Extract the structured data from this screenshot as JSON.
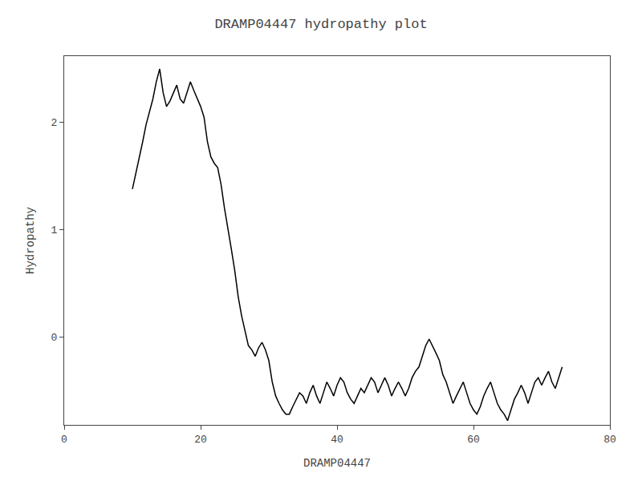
{
  "chart_data": {
    "type": "line",
    "title": "DRAMP04447 hydropathy plot",
    "xlabel": "DRAMP04447",
    "ylabel": "Hydropathy",
    "xlim": [
      0,
      80
    ],
    "ylim": [
      -0.82,
      2.62
    ],
    "xticks": [
      0,
      20,
      40,
      60,
      80
    ],
    "yticks": [
      0,
      1,
      2
    ],
    "color": "#000000",
    "grid": false,
    "x": [
      10.0,
      10.5,
      11.0,
      11.5,
      12.0,
      12.5,
      13.0,
      13.5,
      14.0,
      14.5,
      15.0,
      15.5,
      16.0,
      16.5,
      17.0,
      17.5,
      18.0,
      18.5,
      19.0,
      19.5,
      20.0,
      20.5,
      21.0,
      21.5,
      22.0,
      22.5,
      23.0,
      23.5,
      24.0,
      24.5,
      25.0,
      25.5,
      26.0,
      26.5,
      27.0,
      27.5,
      28.0,
      28.5,
      29.0,
      29.5,
      30.0,
      30.5,
      31.0,
      31.5,
      32.0,
      32.5,
      33.0,
      33.5,
      34.0,
      34.5,
      35.0,
      35.5,
      36.0,
      36.5,
      37.0,
      37.5,
      38.0,
      38.5,
      39.0,
      39.5,
      40.0,
      40.5,
      41.0,
      41.5,
      42.0,
      42.5,
      43.0,
      43.5,
      44.0,
      44.5,
      45.0,
      45.5,
      46.0,
      46.5,
      47.0,
      47.5,
      48.0,
      48.5,
      49.0,
      49.5,
      50.0,
      50.5,
      51.0,
      51.5,
      52.0,
      52.5,
      53.0,
      53.5,
      54.0,
      54.5,
      55.0,
      55.5,
      56.0,
      56.5,
      57.0,
      57.5,
      58.0,
      58.5,
      59.0,
      59.5,
      60.0,
      60.5,
      61.0,
      61.5,
      62.0,
      62.5,
      63.0,
      63.5,
      64.0,
      64.5,
      65.0,
      65.5,
      66.0,
      66.5,
      67.0,
      67.5,
      68.0,
      68.5,
      69.0,
      69.5,
      70.0,
      70.5,
      71.0,
      71.5,
      72.0,
      72.5,
      73.0
    ],
    "values": [
      1.38,
      1.52,
      1.68,
      1.82,
      1.98,
      2.1,
      2.22,
      2.38,
      2.5,
      2.28,
      2.15,
      2.2,
      2.28,
      2.35,
      2.22,
      2.18,
      2.28,
      2.38,
      2.3,
      2.22,
      2.15,
      2.05,
      1.82,
      1.68,
      1.62,
      1.58,
      1.42,
      1.2,
      1.02,
      0.82,
      0.62,
      0.38,
      0.2,
      0.05,
      -0.08,
      -0.12,
      -0.18,
      -0.1,
      -0.05,
      -0.12,
      -0.22,
      -0.42,
      -0.55,
      -0.62,
      -0.68,
      -0.72,
      -0.72,
      -0.65,
      -0.58,
      -0.52,
      -0.55,
      -0.62,
      -0.52,
      -0.45,
      -0.55,
      -0.62,
      -0.52,
      -0.42,
      -0.48,
      -0.55,
      -0.45,
      -0.38,
      -0.42,
      -0.52,
      -0.58,
      -0.62,
      -0.55,
      -0.48,
      -0.52,
      -0.45,
      -0.38,
      -0.42,
      -0.52,
      -0.45,
      -0.38,
      -0.45,
      -0.55,
      -0.48,
      -0.42,
      -0.48,
      -0.55,
      -0.48,
      -0.38,
      -0.32,
      -0.28,
      -0.18,
      -0.08,
      -0.02,
      -0.08,
      -0.15,
      -0.22,
      -0.35,
      -0.42,
      -0.52,
      -0.62,
      -0.55,
      -0.48,
      -0.42,
      -0.52,
      -0.62,
      -0.68,
      -0.72,
      -0.65,
      -0.55,
      -0.48,
      -0.42,
      -0.52,
      -0.62,
      -0.68,
      -0.72,
      -0.78,
      -0.68,
      -0.58,
      -0.52,
      -0.45,
      -0.52,
      -0.62,
      -0.52,
      -0.42,
      -0.38,
      -0.45,
      -0.38,
      -0.32,
      -0.42,
      -0.48,
      -0.38,
      -0.28
    ]
  }
}
